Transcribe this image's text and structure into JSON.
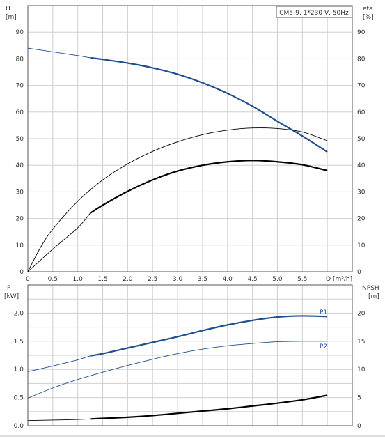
{
  "chart_data": [
    {
      "type": "line",
      "title": "CM5-9, 1*230 V, 50Hz",
      "xlabel": "Q [m³/h]",
      "ylabel_left": "H",
      "ylabel_left_unit": "[m]",
      "ylabel_right": "eta",
      "ylabel_right_unit": "[%]",
      "xlim": [
        0,
        6.5
      ],
      "ylim": [
        0,
        100
      ],
      "x_ticks": [
        "0",
        "0.5",
        "1.0",
        "1.5",
        "2.0",
        "2.5",
        "3.0",
        "3.5",
        "4.0",
        "4.5",
        "5.0",
        "5.5"
      ],
      "x_tick_values": [
        0,
        0.5,
        1,
        1.5,
        2,
        2.5,
        3,
        3.5,
        4,
        4.5,
        5,
        5.5
      ],
      "y_ticks": [
        "0",
        "10",
        "20",
        "30",
        "40",
        "50",
        "60",
        "70",
        "80",
        "90"
      ],
      "y_tick_values": [
        0,
        10,
        20,
        30,
        40,
        50,
        60,
        70,
        80,
        90
      ],
      "grid": true,
      "series": [
        {
          "role": "head",
          "color": "#1f4e8c",
          "thin": {
            "x": [
              0,
              0.5,
              1.0,
              1.25
            ],
            "y": [
              84,
              82.6,
              81.2,
              80.4
            ]
          },
          "bold": {
            "x": [
              1.25,
              1.5,
              2.0,
              2.5,
              3.0,
              3.5,
              4.0,
              4.5,
              5.0,
              5.5,
              6.0
            ],
            "y": [
              80.4,
              79.8,
              78.4,
              76.6,
              74.2,
              71.0,
              67.0,
              62.2,
              56.5,
              51.0,
              45.0
            ]
          }
        },
        {
          "role": "efficiency-bold",
          "color": "#000000",
          "thin": {
            "x": [
              0,
              0.5,
              1.0,
              1.25
            ],
            "y": [
              0,
              8.5,
              16.5,
              22.0
            ]
          },
          "bold": {
            "x": [
              1.25,
              1.5,
              2.0,
              2.5,
              3.0,
              3.5,
              4.0,
              4.5,
              5.0,
              5.5,
              6.0
            ],
            "y": [
              22.0,
              25.0,
              30.2,
              34.5,
              37.8,
              40.0,
              41.3,
              41.8,
              41.3,
              40.2,
              38.0
            ]
          }
        },
        {
          "role": "efficiency-thin",
          "color": "#000000",
          "thin": {
            "x": [
              0,
              0.25,
              0.5,
              1.0,
              1.5,
              2.0,
              2.5,
              3.0,
              3.5,
              4.0,
              4.5,
              5.0,
              5.5,
              6.0
            ],
            "y": [
              0,
              9.0,
              16.0,
              26.5,
              34.5,
              40.5,
              45.2,
              48.8,
              51.5,
              53.2,
              54.0,
              53.8,
              52.5,
              49.2
            ]
          },
          "bold": {
            "x": [],
            "y": []
          }
        }
      ]
    },
    {
      "type": "line",
      "xlabel": "Q [m³/h]",
      "ylabel_left": "P",
      "ylabel_left_unit": "[kW]",
      "ylabel_right": "NPSH",
      "ylabel_right_unit": "[m]",
      "xlim": [
        0,
        6.5
      ],
      "ylim": [
        0,
        2.5
      ],
      "y_ticks": [
        "0.0",
        "0.5",
        "1.0",
        "1.5",
        "2.0"
      ],
      "y_tick_values": [
        0,
        0.5,
        1.0,
        1.5,
        2.0
      ],
      "y2_ticks": [
        "0",
        "5",
        "10",
        "15",
        "20"
      ],
      "grid": true,
      "series": [
        {
          "name": "P1",
          "color": "#1f4e8c",
          "thin": {
            "x": [
              0,
              0.5,
              1.0,
              1.25
            ],
            "y": [
              0.96,
              1.06,
              1.17,
              1.24
            ]
          },
          "bold": {
            "x": [
              1.25,
              1.5,
              2.0,
              2.5,
              3.0,
              3.5,
              4.0,
              4.5,
              5.0,
              5.5,
              6.0
            ],
            "y": [
              1.24,
              1.28,
              1.38,
              1.48,
              1.58,
              1.69,
              1.79,
              1.87,
              1.93,
              1.95,
              1.94
            ]
          }
        },
        {
          "name": "P2",
          "color": "#1f4e8c",
          "thin": {
            "x": [
              0,
              0.5,
              1.0,
              1.5,
              2.0,
              2.5,
              3.0,
              3.5,
              4.0,
              4.5,
              5.0,
              5.5,
              6.0
            ],
            "y": [
              0.49,
              0.67,
              0.82,
              0.95,
              1.07,
              1.18,
              1.28,
              1.36,
              1.42,
              1.46,
              1.49,
              1.5,
              1.5
            ]
          },
          "bold": {
            "x": [],
            "y": []
          }
        },
        {
          "role": "npsh",
          "color": "#000000",
          "thin": {
            "x": [
              0,
              0.5,
              1.0,
              1.25
            ],
            "y": [
              0.09,
              0.1,
              0.11,
              0.12
            ]
          },
          "bold": {
            "x": [
              1.25,
              1.5,
              2.0,
              2.5,
              3.0,
              3.5,
              4.0,
              4.5,
              5.0,
              5.5,
              6.0
            ],
            "y": [
              0.12,
              0.13,
              0.15,
              0.18,
              0.22,
              0.26,
              0.3,
              0.35,
              0.4,
              0.46,
              0.54
            ]
          }
        }
      ]
    }
  ]
}
